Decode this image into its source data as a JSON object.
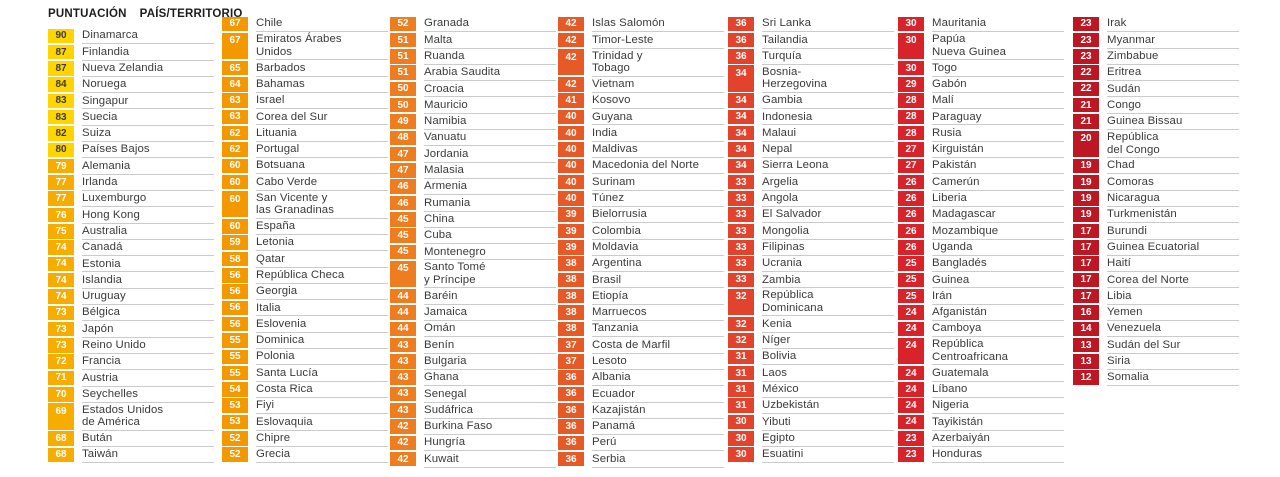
{
  "header": {
    "score_label": "PUNTUACIÓN",
    "territory_label": "PAÍS/TERRITORIO"
  },
  "chart_data": {
    "type": "table",
    "title": "PUNTUACIÓN PAÍS/TERRITORIO",
    "high_score_threshold": 80,
    "colors": {
      "high_score_fill": "#FFD500",
      "high_score_text": "#3B3B3A",
      "badge_text": "#FFFFFF",
      "name_text": "#3A3A39",
      "divider": "#CBCBCB",
      "column_fills": [
        "#F7AC00",
        "#F49800",
        "#EE7D1F",
        "#E65A28",
        "#E2432D",
        "#D8232B",
        "#BC1722"
      ]
    },
    "layout": {
      "column_lefts": [
        48,
        222,
        390,
        558,
        728,
        898,
        1073
      ],
      "column_tops": [
        28,
        16,
        16,
        16,
        16,
        16,
        16
      ]
    },
    "columns": [
      {
        "rows": [
          [
            90,
            "Dinamarca"
          ],
          [
            87,
            "Finlandia"
          ],
          [
            87,
            "Nueva Zelandia"
          ],
          [
            84,
            "Noruega"
          ],
          [
            83,
            "Singapur"
          ],
          [
            83,
            "Suecia"
          ],
          [
            82,
            "Suiza"
          ],
          [
            80,
            "Países Bajos"
          ],
          [
            79,
            "Alemania"
          ],
          [
            77,
            "Irlanda"
          ],
          [
            77,
            "Luxemburgo"
          ],
          [
            76,
            "Hong Kong"
          ],
          [
            75,
            "Australia"
          ],
          [
            74,
            "Canadá"
          ],
          [
            74,
            "Estonia"
          ],
          [
            74,
            "Islandia"
          ],
          [
            74,
            "Uruguay"
          ],
          [
            73,
            "Bélgica"
          ],
          [
            73,
            "Japón"
          ],
          [
            73,
            "Reino Unido"
          ],
          [
            72,
            "Francia"
          ],
          [
            71,
            "Austria"
          ],
          [
            70,
            "Seychelles"
          ],
          [
            69,
            "Estados Unidos\nde América"
          ],
          [
            68,
            "Bután"
          ],
          [
            68,
            "Taiwán"
          ]
        ]
      },
      {
        "rows": [
          [
            67,
            "Chile"
          ],
          [
            67,
            "Emiratos Árabes\nUnidos"
          ],
          [
            65,
            "Barbados"
          ],
          [
            64,
            "Bahamas"
          ],
          [
            63,
            "Israel"
          ],
          [
            63,
            "Corea del Sur"
          ],
          [
            62,
            "Lituania"
          ],
          [
            62,
            "Portugal"
          ],
          [
            60,
            "Botsuana"
          ],
          [
            60,
            "Cabo Verde"
          ],
          [
            60,
            "San Vicente y\nlas Granadinas"
          ],
          [
            60,
            "España"
          ],
          [
            59,
            "Letonia"
          ],
          [
            58,
            "Qatar"
          ],
          [
            56,
            "República Checa"
          ],
          [
            56,
            "Georgia"
          ],
          [
            56,
            "Italia"
          ],
          [
            56,
            "Eslovenia"
          ],
          [
            55,
            "Dominica"
          ],
          [
            55,
            "Polonia"
          ],
          [
            55,
            "Santa Lucía"
          ],
          [
            54,
            "Costa Rica"
          ],
          [
            53,
            "Fiyi"
          ],
          [
            53,
            "Eslovaquia"
          ],
          [
            52,
            "Chipre"
          ],
          [
            52,
            "Grecia"
          ]
        ]
      },
      {
        "rows": [
          [
            52,
            "Granada"
          ],
          [
            51,
            "Malta"
          ],
          [
            51,
            "Ruanda"
          ],
          [
            51,
            "Arabia Saudita"
          ],
          [
            50,
            "Croacia"
          ],
          [
            50,
            "Mauricio"
          ],
          [
            49,
            "Namibia"
          ],
          [
            48,
            "Vanuatu"
          ],
          [
            47,
            "Jordania"
          ],
          [
            47,
            "Malasia"
          ],
          [
            46,
            "Armenia"
          ],
          [
            46,
            "Rumania"
          ],
          [
            45,
            "China"
          ],
          [
            45,
            "Cuba"
          ],
          [
            45,
            "Montenegro"
          ],
          [
            45,
            "Santo Tomé\ny Príncipe"
          ],
          [
            44,
            "Baréin"
          ],
          [
            44,
            "Jamaica"
          ],
          [
            44,
            "Omán"
          ],
          [
            43,
            "Benín"
          ],
          [
            43,
            "Bulgaria"
          ],
          [
            43,
            "Ghana"
          ],
          [
            43,
            "Senegal"
          ],
          [
            43,
            "Sudáfrica"
          ],
          [
            42,
            "Burkina Faso"
          ],
          [
            42,
            "Hungría"
          ],
          [
            42,
            "Kuwait"
          ]
        ]
      },
      {
        "rows": [
          [
            42,
            "Islas Salomón"
          ],
          [
            42,
            "Timor-Leste"
          ],
          [
            42,
            "Trinidad y\nTobago"
          ],
          [
            42,
            "Vietnam"
          ],
          [
            41,
            "Kosovo"
          ],
          [
            40,
            "Guyana"
          ],
          [
            40,
            "India"
          ],
          [
            40,
            "Maldivas"
          ],
          [
            40,
            "Macedonia del Norte"
          ],
          [
            40,
            "Surinam"
          ],
          [
            40,
            "Túnez"
          ],
          [
            39,
            "Bielorrusia"
          ],
          [
            39,
            "Colombia"
          ],
          [
            39,
            "Moldavia"
          ],
          [
            38,
            "Argentina"
          ],
          [
            38,
            "Brasil"
          ],
          [
            38,
            "Etiopía"
          ],
          [
            38,
            "Marruecos"
          ],
          [
            38,
            "Tanzania"
          ],
          [
            37,
            "Costa de Marfil"
          ],
          [
            37,
            "Lesoto"
          ],
          [
            36,
            "Albania"
          ],
          [
            36,
            "Ecuador"
          ],
          [
            36,
            "Kazajistán"
          ],
          [
            36,
            "Panamá"
          ],
          [
            36,
            "Perú"
          ],
          [
            36,
            "Serbia"
          ]
        ]
      },
      {
        "rows": [
          [
            36,
            "Sri Lanka"
          ],
          [
            36,
            "Tailandia"
          ],
          [
            36,
            "Turquía"
          ],
          [
            34,
            "Bosnia-\nHerzegovina"
          ],
          [
            34,
            "Gambia"
          ],
          [
            34,
            "Indonesia"
          ],
          [
            34,
            "Malaui"
          ],
          [
            34,
            "Nepal"
          ],
          [
            34,
            "Sierra Leona"
          ],
          [
            33,
            "Argelia"
          ],
          [
            33,
            "Angola"
          ],
          [
            33,
            "El Salvador"
          ],
          [
            33,
            "Mongolia"
          ],
          [
            33,
            "Filipinas"
          ],
          [
            33,
            "Ucrania"
          ],
          [
            33,
            "Zambia"
          ],
          [
            32,
            "República\nDominicana"
          ],
          [
            32,
            "Kenia"
          ],
          [
            32,
            "Níger"
          ],
          [
            31,
            "Bolivia"
          ],
          [
            31,
            "Laos"
          ],
          [
            31,
            "México"
          ],
          [
            31,
            "Uzbekistán"
          ],
          [
            30,
            "Yibuti"
          ],
          [
            30,
            "Egipto"
          ],
          [
            30,
            "Esuatini"
          ]
        ]
      },
      {
        "rows": [
          [
            30,
            "Mauritania"
          ],
          [
            30,
            "Papúa\nNueva Guinea"
          ],
          [
            30,
            "Togo"
          ],
          [
            29,
            "Gabón"
          ],
          [
            28,
            "Malí"
          ],
          [
            28,
            "Paraguay"
          ],
          [
            28,
            "Rusia"
          ],
          [
            27,
            "Kirguistán"
          ],
          [
            27,
            "Pakistán"
          ],
          [
            26,
            "Camerún"
          ],
          [
            26,
            "Liberia"
          ],
          [
            26,
            "Madagascar"
          ],
          [
            26,
            "Mozambique"
          ],
          [
            26,
            "Uganda"
          ],
          [
            25,
            "Bangladés"
          ],
          [
            25,
            "Guinea"
          ],
          [
            25,
            "Irán"
          ],
          [
            24,
            "Afganistán"
          ],
          [
            24,
            "Camboya"
          ],
          [
            24,
            "República\nCentroafricana"
          ],
          [
            24,
            "Guatemala"
          ],
          [
            24,
            "Líbano"
          ],
          [
            24,
            "Nigeria"
          ],
          [
            24,
            "Tayikistán"
          ],
          [
            23,
            "Azerbaiyán"
          ],
          [
            23,
            "Honduras"
          ]
        ]
      },
      {
        "rows": [
          [
            23,
            "Irak"
          ],
          [
            23,
            "Myanmar"
          ],
          [
            23,
            "Zimbabue"
          ],
          [
            22,
            "Eritrea"
          ],
          [
            22,
            "Sudán"
          ],
          [
            21,
            "Congo"
          ],
          [
            21,
            "Guinea Bissau"
          ],
          [
            20,
            "República\ndel Congo"
          ],
          [
            19,
            "Chad"
          ],
          [
            19,
            "Comoras"
          ],
          [
            19,
            "Nicaragua"
          ],
          [
            19,
            "Turkmenistán"
          ],
          [
            17,
            "Burundi"
          ],
          [
            17,
            "Guinea Ecuatorial"
          ],
          [
            17,
            "Haití"
          ],
          [
            17,
            "Corea del Norte"
          ],
          [
            17,
            "Libia"
          ],
          [
            16,
            "Yemen"
          ],
          [
            14,
            "Venezuela"
          ],
          [
            13,
            "Sudán del Sur"
          ],
          [
            13,
            "Siria"
          ],
          [
            12,
            "Somalia"
          ]
        ]
      }
    ]
  }
}
